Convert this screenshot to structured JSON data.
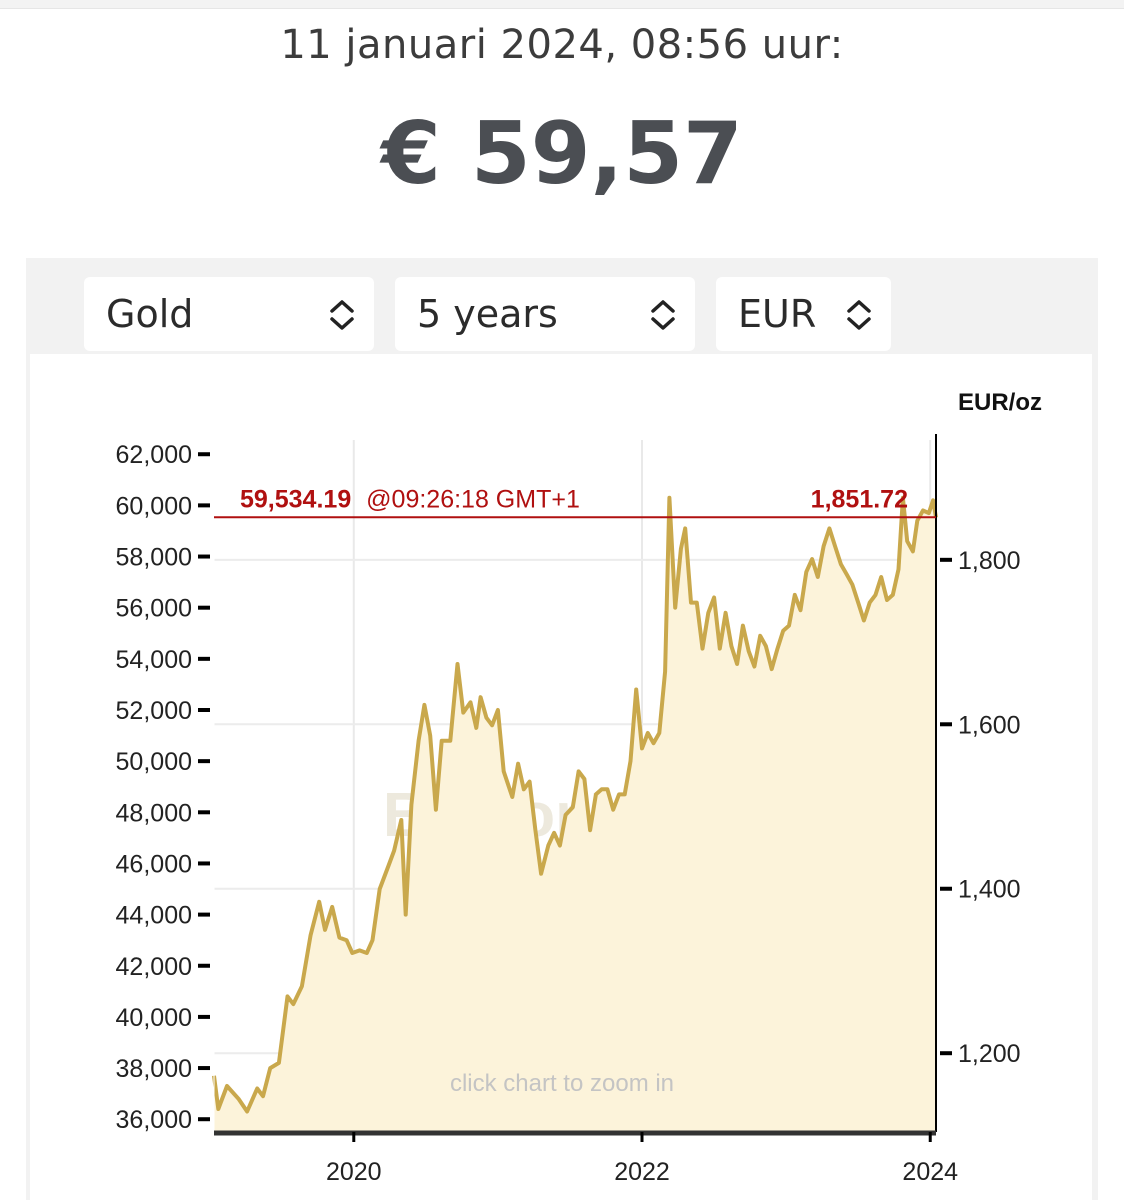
{
  "header": {
    "date_line": "11 januari 2024, 08:56 uur:",
    "price": "€ 59,57"
  },
  "selectors": [
    {
      "value": "Gold"
    },
    {
      "value": "5 years"
    },
    {
      "value": "EUR"
    }
  ],
  "colors": {
    "line": "#c9a84c",
    "area": "#fcf3da",
    "reference": "#b01010"
  },
  "chart_data": {
    "type": "area",
    "unit": "EUR/oz",
    "left_axis": {
      "ticks": [
        36000,
        38000,
        40000,
        42000,
        44000,
        46000,
        48000,
        50000,
        52000,
        54000,
        56000,
        58000,
        60000,
        62000
      ],
      "tick_labels": [
        "36,000",
        "38,000",
        "40,000",
        "42,000",
        "44,000",
        "46,000",
        "48,000",
        "50,000",
        "52,000",
        "54,000",
        "56,000",
        "58,000",
        "60,000",
        "62,000"
      ],
      "range": [
        35500,
        62400
      ]
    },
    "right_axis": {
      "ticks": [
        1200,
        1400,
        1600,
        1800
      ],
      "tick_labels": [
        "1,200",
        "1,400",
        "1,600",
        "1,800"
      ]
    },
    "x_axis": {
      "ticks": [
        2020,
        2022,
        2024
      ],
      "tick_labels": [
        "2020",
        "2022",
        "2024"
      ],
      "range": [
        2019.03,
        2024.04
      ]
    },
    "reference": {
      "value": 59534.19,
      "value_label": "59,534.19",
      "time_label": "@09:26:18 GMT+1",
      "right_label": "1,851.72"
    },
    "watermark": "BullionVault",
    "hint": "click chart to zoom in",
    "series": [
      {
        "points": [
          [
            2019.03,
            37700
          ],
          [
            2019.06,
            36400
          ],
          [
            2019.12,
            37300
          ],
          [
            2019.2,
            36800
          ],
          [
            2019.26,
            36300
          ],
          [
            2019.33,
            37200
          ],
          [
            2019.37,
            36900
          ],
          [
            2019.42,
            38000
          ],
          [
            2019.48,
            38200
          ],
          [
            2019.54,
            40800
          ],
          [
            2019.58,
            40500
          ],
          [
            2019.64,
            41200
          ],
          [
            2019.7,
            43200
          ],
          [
            2019.76,
            44500
          ],
          [
            2019.8,
            43400
          ],
          [
            2019.85,
            44300
          ],
          [
            2019.9,
            43100
          ],
          [
            2019.95,
            43000
          ],
          [
            2019.99,
            42500
          ],
          [
            2020.04,
            42600
          ],
          [
            2020.09,
            42500
          ],
          [
            2020.13,
            43000
          ],
          [
            2020.18,
            45000
          ],
          [
            2020.24,
            45900
          ],
          [
            2020.28,
            46500
          ],
          [
            2020.33,
            47700
          ],
          [
            2020.36,
            44000
          ],
          [
            2020.4,
            48300
          ],
          [
            2020.45,
            50800
          ],
          [
            2020.49,
            52200
          ],
          [
            2020.53,
            51000
          ],
          [
            2020.57,
            48100
          ],
          [
            2020.61,
            50800
          ],
          [
            2020.67,
            50800
          ],
          [
            2020.72,
            53800
          ],
          [
            2020.76,
            51900
          ],
          [
            2020.81,
            52300
          ],
          [
            2020.85,
            51300
          ],
          [
            2020.88,
            52500
          ],
          [
            2020.92,
            51700
          ],
          [
            2020.96,
            51400
          ],
          [
            2021.0,
            52000
          ],
          [
            2021.04,
            49600
          ],
          [
            2021.1,
            48600
          ],
          [
            2021.14,
            49900
          ],
          [
            2021.18,
            48900
          ],
          [
            2021.22,
            49200
          ],
          [
            2021.26,
            47300
          ],
          [
            2021.3,
            45600
          ],
          [
            2021.35,
            46700
          ],
          [
            2021.39,
            47200
          ],
          [
            2021.43,
            46700
          ],
          [
            2021.47,
            47900
          ],
          [
            2021.52,
            48200
          ],
          [
            2021.56,
            49600
          ],
          [
            2021.6,
            49300
          ],
          [
            2021.64,
            47300
          ],
          [
            2021.68,
            48700
          ],
          [
            2021.72,
            48900
          ],
          [
            2021.76,
            48900
          ],
          [
            2021.8,
            48100
          ],
          [
            2021.84,
            48700
          ],
          [
            2021.88,
            48700
          ],
          [
            2021.92,
            50000
          ],
          [
            2021.96,
            52800
          ],
          [
            2022.0,
            50500
          ],
          [
            2022.04,
            51100
          ],
          [
            2022.08,
            50700
          ],
          [
            2022.12,
            51100
          ],
          [
            2022.16,
            53500
          ],
          [
            2022.19,
            60300
          ],
          [
            2022.23,
            56000
          ],
          [
            2022.27,
            58300
          ],
          [
            2022.3,
            59100
          ],
          [
            2022.34,
            56200
          ],
          [
            2022.38,
            56200
          ],
          [
            2022.42,
            54400
          ],
          [
            2022.46,
            55800
          ],
          [
            2022.5,
            56400
          ],
          [
            2022.54,
            54400
          ],
          [
            2022.58,
            55800
          ],
          [
            2022.62,
            54500
          ],
          [
            2022.66,
            53800
          ],
          [
            2022.7,
            55300
          ],
          [
            2022.74,
            54300
          ],
          [
            2022.78,
            53700
          ],
          [
            2022.82,
            54900
          ],
          [
            2022.86,
            54500
          ],
          [
            2022.9,
            53600
          ],
          [
            2022.94,
            54400
          ],
          [
            2022.98,
            55100
          ],
          [
            2023.02,
            55300
          ],
          [
            2023.06,
            56500
          ],
          [
            2023.1,
            55900
          ],
          [
            2023.14,
            57400
          ],
          [
            2023.18,
            57900
          ],
          [
            2023.22,
            57200
          ],
          [
            2023.26,
            58400
          ],
          [
            2023.3,
            59100
          ],
          [
            2023.34,
            58400
          ],
          [
            2023.38,
            57700
          ],
          [
            2023.42,
            57300
          ],
          [
            2023.46,
            56900
          ],
          [
            2023.5,
            56200
          ],
          [
            2023.54,
            55500
          ],
          [
            2023.58,
            56200
          ],
          [
            2023.62,
            56500
          ],
          [
            2023.66,
            57200
          ],
          [
            2023.7,
            56300
          ],
          [
            2023.74,
            56500
          ],
          [
            2023.78,
            57500
          ],
          [
            2023.81,
            60300
          ],
          [
            2023.84,
            58600
          ],
          [
            2023.88,
            58200
          ],
          [
            2023.91,
            59400
          ],
          [
            2023.95,
            59800
          ],
          [
            2023.99,
            59700
          ],
          [
            2024.02,
            60200
          ],
          [
            2024.04,
            59530
          ]
        ]
      }
    ]
  }
}
